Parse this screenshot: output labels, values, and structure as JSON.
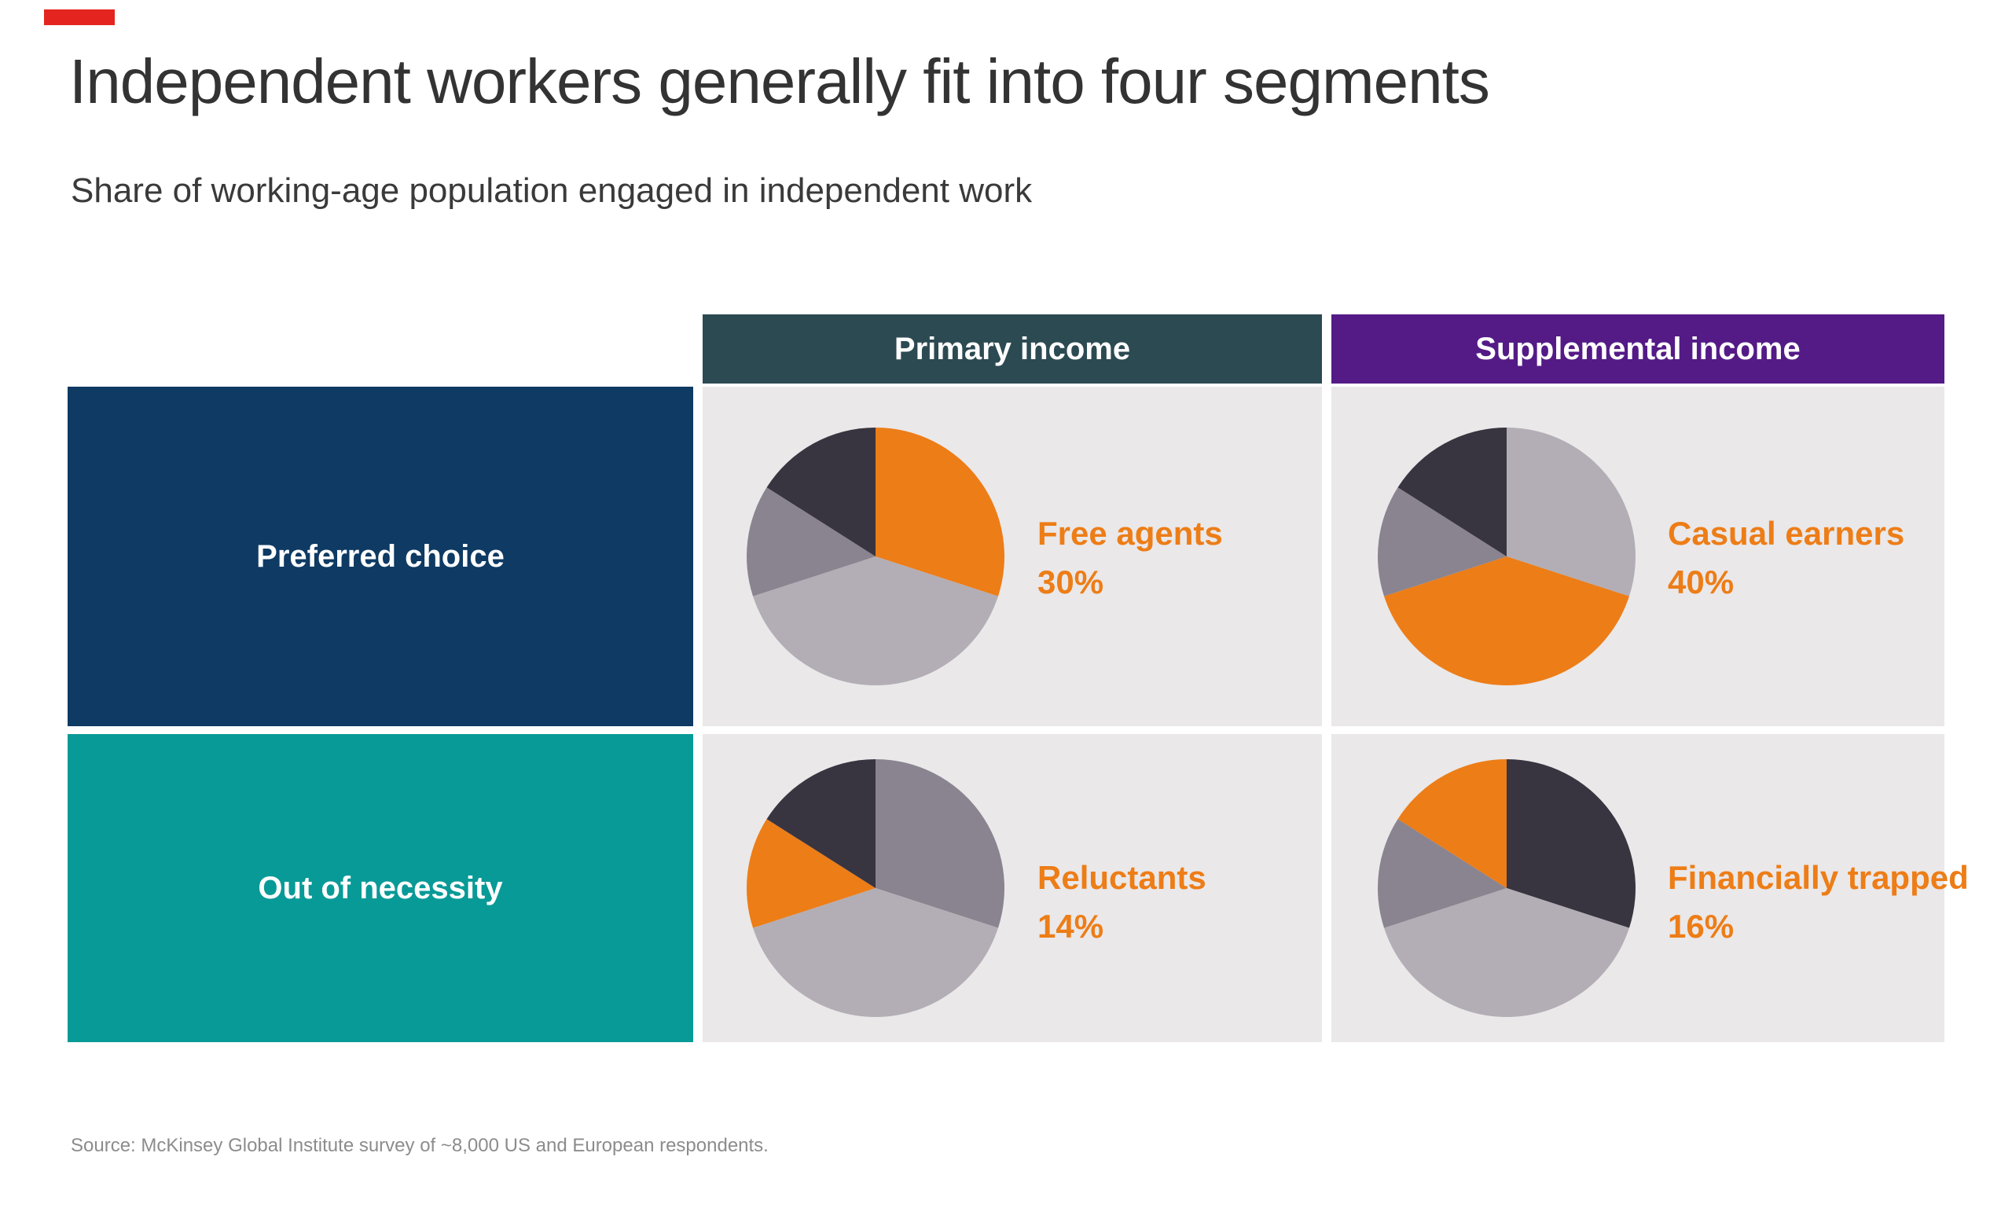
{
  "brand": {
    "accent_bar_color": "#e4251f"
  },
  "header": {
    "title": "Independent workers generally fit into four segments",
    "subtitle": "Share of working-age population engaged in independent work"
  },
  "matrix": {
    "column_headers": [
      {
        "label": "Primary income",
        "bg": "#2c4a52",
        "text_color": "#ffffff"
      },
      {
        "label": "Supplemental income",
        "bg": "#541b86",
        "text_color": "#ffffff"
      }
    ],
    "row_headers": [
      {
        "label": "Preferred choice",
        "bg": "#0e3a63",
        "text_color": "#ffffff"
      },
      {
        "label": "Out of necessity",
        "bg": "#089a97",
        "text_color": "#ffffff"
      }
    ],
    "cell_bg": "#eae8e9"
  },
  "chart_data": {
    "type": "pie",
    "title": "Share of working-age population engaged in independent work",
    "legend_position": "none",
    "segment_order_clockwise_from_top": [
      "Free agents",
      "Casual earners",
      "Reluctants",
      "Financially trapped"
    ],
    "segments": [
      {
        "name": "Free agents",
        "pct": 30
      },
      {
        "name": "Casual earners",
        "pct": 40
      },
      {
        "name": "Reluctants",
        "pct": 14
      },
      {
        "name": "Financially trapped",
        "pct": 16
      }
    ],
    "palette": {
      "orange": "#ed7d17",
      "light-gray": "#b3aeb5",
      "medium-gray": "#8a8490",
      "dark-gray": "#393540"
    },
    "label_color": "#ed7d17",
    "pies": [
      {
        "row": "Preferred choice",
        "column": "Primary income",
        "label": "Free agents",
        "value_label": "30%",
        "value_pct": 30,
        "slice_colors": [
          "orange",
          "light-gray",
          "medium-gray",
          "dark-gray"
        ]
      },
      {
        "row": "Preferred choice",
        "column": "Supplemental income",
        "label": "Casual earners",
        "value_label": "40%",
        "value_pct": 40,
        "slice_colors": [
          "light-gray",
          "orange",
          "medium-gray",
          "dark-gray"
        ]
      },
      {
        "row": "Out of necessity",
        "column": "Primary income",
        "label": "Reluctants",
        "value_label": "14%",
        "value_pct": 14,
        "slice_colors": [
          "medium-gray",
          "light-gray",
          "orange",
          "dark-gray"
        ]
      },
      {
        "row": "Out of necessity",
        "column": "Supplemental income",
        "label": "Financially trapped",
        "value_label": "16%",
        "value_pct": 16,
        "slice_colors": [
          "dark-gray",
          "light-gray",
          "medium-gray",
          "orange"
        ]
      }
    ]
  },
  "footer": {
    "source": "Source: McKinsey Global Institute survey of ~8,000 US and European respondents."
  }
}
